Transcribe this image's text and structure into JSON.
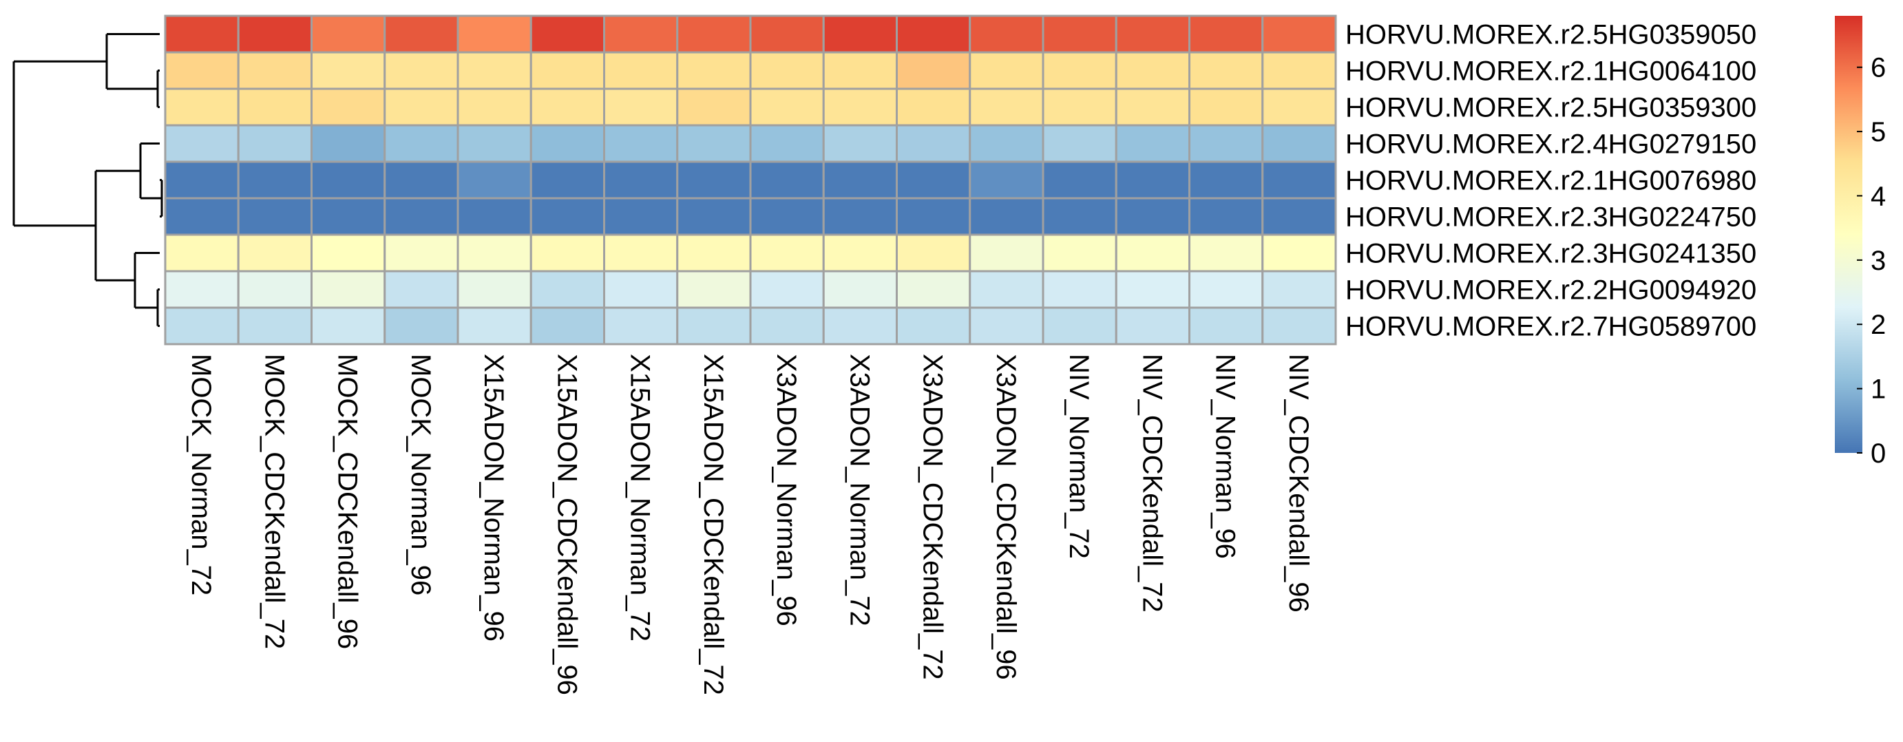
{
  "chart_data": {
    "type": "heatmap",
    "rows": [
      "HORVU.MOREX.r2.5HG0359050",
      "HORVU.MOREX.r2.1HG0064100",
      "HORVU.MOREX.r2.5HG0359300",
      "HORVU.MOREX.r2.4HG0279150",
      "HORVU.MOREX.r2.1HG0076980",
      "HORVU.MOREX.r2.3HG0224750",
      "HORVU.MOREX.r2.3HG0241350",
      "HORVU.MOREX.r2.2HG0094920",
      "HORVU.MOREX.r2.7HG0589700"
    ],
    "columns": [
      "MOCK_Norman_72",
      "MOCK_CDCKendall_72",
      "MOCK_CDCKendall_96",
      "MOCK_Norman_96",
      "X15ADON_Norman_96",
      "X15ADON_CDCKendall_96",
      "X15ADON_Norman_72",
      "X15ADON_CDCKendall_72",
      "X3ADON_Norman_96",
      "X3ADON_Norman_72",
      "X3ADON_CDCKendall_72",
      "X3ADON_CDCKendall_96",
      "NIV_Norman_72",
      "NIV_CDCKendall_72",
      "NIV_Norman_96",
      "NIV_CDCKendall_96"
    ],
    "values": [
      [
        6.5,
        6.6,
        5.9,
        6.3,
        5.7,
        6.6,
        6.1,
        6.2,
        6.3,
        6.6,
        6.6,
        6.3,
        6.3,
        6.3,
        6.3,
        6.1
      ],
      [
        4.7,
        4.6,
        4.3,
        4.4,
        4.4,
        4.5,
        4.5,
        4.5,
        4.5,
        4.5,
        4.9,
        4.5,
        4.5,
        4.5,
        4.5,
        4.5
      ],
      [
        4.4,
        4.5,
        4.6,
        4.4,
        4.4,
        4.4,
        4.3,
        4.6,
        4.4,
        4.4,
        4.5,
        4.4,
        4.4,
        4.4,
        4.5,
        4.4
      ],
      [
        1.6,
        1.5,
        0.9,
        1.2,
        1.3,
        1.1,
        1.2,
        1.3,
        1.2,
        1.5,
        1.4,
        1.2,
        1.5,
        1.2,
        1.2,
        1.1
      ],
      [
        0.1,
        0.1,
        0.1,
        0.1,
        0.4,
        0.1,
        0.1,
        0.1,
        0.1,
        0.1,
        0.1,
        0.4,
        0.1,
        0.1,
        0.1,
        0.1
      ],
      [
        0.1,
        0.1,
        0.1,
        0.1,
        0.1,
        0.1,
        0.1,
        0.1,
        0.1,
        0.1,
        0.1,
        0.1,
        0.1,
        0.1,
        0.1,
        0.1
      ],
      [
        3.6,
        3.7,
        3.4,
        3.2,
        3.2,
        3.6,
        3.6,
        3.6,
        3.6,
        3.6,
        3.8,
        3.0,
        3.3,
        3.3,
        3.2,
        3.4
      ],
      [
        2.4,
        2.5,
        2.8,
        1.9,
        2.6,
        1.8,
        2.1,
        2.8,
        2.1,
        2.5,
        2.7,
        2.0,
        2.1,
        2.2,
        2.2,
        2.0
      ],
      [
        1.8,
        1.8,
        2.0,
        1.5,
        2.0,
        1.5,
        1.9,
        1.8,
        1.8,
        1.9,
        1.8,
        1.9,
        1.8,
        1.9,
        1.8,
        1.8
      ]
    ],
    "legend": {
      "ticks": [
        0,
        1,
        2,
        3,
        4,
        5,
        6
      ],
      "range": [
        0,
        6.8
      ],
      "colors": [
        "#4575B4",
        "#91BFDB",
        "#E0F3F8",
        "#FFFFBF",
        "#FEE090",
        "#FC8D59",
        "#D73027"
      ]
    },
    "row_dendrogram": true,
    "grid": true
  }
}
